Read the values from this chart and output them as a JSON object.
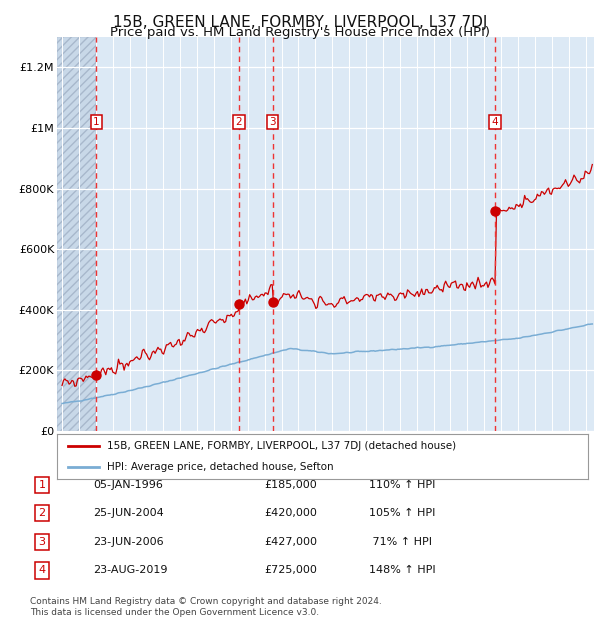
{
  "title": "15B, GREEN LANE, FORMBY, LIVERPOOL, L37 7DJ",
  "subtitle": "Price paid vs. HM Land Registry's House Price Index (HPI)",
  "title_fontsize": 11,
  "subtitle_fontsize": 9.5,
  "background_color": "#dce9f5",
  "ylim": [
    0,
    1300000
  ],
  "yticks": [
    0,
    200000,
    400000,
    600000,
    800000,
    1000000,
    1200000
  ],
  "ytick_labels": [
    "£0",
    "£200K",
    "£400K",
    "£600K",
    "£800K",
    "£1M",
    "£1.2M"
  ],
  "xlim_start": 1993.7,
  "xlim_end": 2025.5,
  "sale_dates": [
    1996.03,
    2004.48,
    2006.47,
    2019.64
  ],
  "sale_prices": [
    185000,
    420000,
    427000,
    725000
  ],
  "sale_labels": [
    "1",
    "2",
    "3",
    "4"
  ],
  "red_line_color": "#cc0000",
  "blue_line_color": "#7aadd4",
  "dot_color": "#cc0000",
  "dashed_line_color": "#ee3333",
  "legend_entries": [
    "15B, GREEN LANE, FORMBY, LIVERPOOL, L37 7DJ (detached house)",
    "HPI: Average price, detached house, Sefton"
  ],
  "table_rows": [
    [
      "1",
      "05-JAN-1996",
      "£185,000",
      "110% ↑ HPI"
    ],
    [
      "2",
      "25-JUN-2004",
      "£420,000",
      "105% ↑ HPI"
    ],
    [
      "3",
      "23-JUN-2006",
      "£427,000",
      " 71% ↑ HPI"
    ],
    [
      "4",
      "23-AUG-2019",
      "£725,000",
      "148% ↑ HPI"
    ]
  ],
  "footer_text": "Contains HM Land Registry data © Crown copyright and database right 2024.\nThis data is licensed under the Open Government Licence v3.0."
}
